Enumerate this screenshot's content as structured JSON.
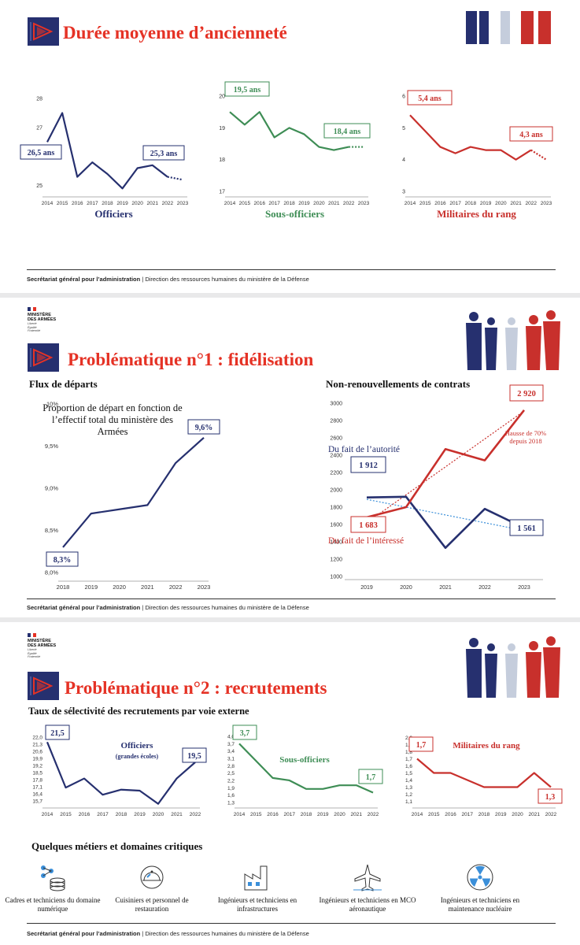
{
  "colors": {
    "navy": "#26306f",
    "green": "#3e8d55",
    "red": "#c8302c",
    "title_red": "#e53225",
    "light_blue": "#3b8fd9",
    "blue_grey": "#c5cddc"
  },
  "footer": {
    "bold": "Secrétariat général pour l’administration",
    "rest": " | Direction des ressources humaines du ministère de la Défense"
  },
  "ministry": {
    "line1": "MINISTÈRE",
    "line2": "DES ARMÉES",
    "motto1": "Liberté",
    "motto2": "Égalité",
    "motto3": "Fraternité"
  },
  "slide1": {
    "title": "Durée moyenne d’ancienneté",
    "charts": [
      {
        "type": "line",
        "caption": "Officiers",
        "color": "#26306f",
        "x": [
          "2014",
          "2015",
          "2016",
          "2017",
          "2018",
          "2019",
          "2020",
          "2021",
          "2022",
          "2023"
        ],
        "y": [
          26.5,
          27.5,
          25.3,
          25.8,
          25.4,
          24.9,
          25.6,
          25.7,
          25.3,
          25.2
        ],
        "dotted_from_index": 8,
        "ylim": [
          24.8,
          28.3
        ],
        "yticks": [
          "25",
          "26",
          "27",
          "28"
        ],
        "labels": [
          {
            "text": "26,5 ans",
            "index": 0
          },
          {
            "text": "25,3 ans",
            "index": 8
          }
        ]
      },
      {
        "type": "line",
        "caption": "Sous-officiers",
        "color": "#3e8d55",
        "x": [
          "2014",
          "2015",
          "2016",
          "2017",
          "2018",
          "2019",
          "2020",
          "2021",
          "2022",
          "2023"
        ],
        "y": [
          19.5,
          19.1,
          19.5,
          18.7,
          19.0,
          18.8,
          18.4,
          18.3,
          18.4,
          18.4
        ],
        "dotted_from_index": 8,
        "ylim": [
          17.0,
          20.2
        ],
        "yticks": [
          "17",
          "18",
          "19",
          "20"
        ],
        "labels": [
          {
            "text": "19,5 ans",
            "index": 0
          },
          {
            "text": "18,4 ans",
            "index": 8
          }
        ]
      },
      {
        "type": "line",
        "caption": "Militaires du rang",
        "color": "#c8302c",
        "x": [
          "2014",
          "2015",
          "2016",
          "2017",
          "2018",
          "2019",
          "2020",
          "2021",
          "2022",
          "2023"
        ],
        "y": [
          5.4,
          4.9,
          4.4,
          4.2,
          4.4,
          4.3,
          4.3,
          4.0,
          4.3,
          4.0
        ],
        "dotted_from_index": 8,
        "ylim": [
          3.0,
          6.2
        ],
        "yticks": [
          "3",
          "4",
          "5",
          "6"
        ],
        "labels": [
          {
            "text": "5,4 ans",
            "index": 0
          },
          {
            "text": "4,3 ans",
            "index": 8
          }
        ]
      }
    ]
  },
  "slide2": {
    "title": "Problématique n°1 : fidélisation",
    "left_heading": "Flux de départs",
    "right_heading": "Non-renouvellements de contrats",
    "note": "Proportion de départ en fonction de l’effectif total du ministère des Armées",
    "chart_left": {
      "type": "line",
      "color": "#26306f",
      "x": [
        "2018",
        "2019",
        "2020",
        "2021",
        "2022",
        "2023"
      ],
      "y": [
        8.3,
        8.7,
        8.75,
        8.8,
        9.3,
        9.6
      ],
      "ylim": [
        8.0,
        10.0
      ],
      "yticks": [
        "8,0%",
        "8,5%",
        "9,0%",
        "9,5%",
        "10%"
      ],
      "labels": [
        {
          "text": "8,3%",
          "index": 0
        },
        {
          "text": "9,6%",
          "index": 5
        }
      ]
    },
    "chart_right": {
      "type": "line",
      "x": [
        "2019",
        "2020",
        "2021",
        "2022",
        "2023"
      ],
      "ylim": [
        1000,
        3000
      ],
      "yticks": [
        "1000",
        "1200",
        "1400",
        "1600",
        "1800",
        "2000",
        "2200",
        "2400",
        "2600",
        "2800",
        "3000"
      ],
      "series": [
        {
          "name": "Du fait de l’autorité",
          "color": "#26306f",
          "values": [
            1912,
            1920,
            1330,
            1780,
            1561
          ]
        },
        {
          "name": "Du fait de l’intéressé",
          "color": "#c8302c",
          "values": [
            1683,
            1800,
            2470,
            2340,
            2920
          ]
        }
      ],
      "labels": [
        {
          "text": "1 912"
        },
        {
          "text": "1 561"
        },
        {
          "text": "1 683"
        },
        {
          "text": "2 920"
        }
      ],
      "annotation": "Hausse de 70% depuis 2018"
    }
  },
  "slide3": {
    "title": "Problématique n°2 : recrutements",
    "heading": "Taux de sélectivité des recrutements par voie externe",
    "charts": [
      {
        "type": "line",
        "color": "#26306f",
        "caption": "Officiers",
        "subcaption": "(grandes écoles)",
        "x": [
          "2014",
          "2015",
          "2016",
          "2017",
          "2018",
          "2019",
          "2020",
          "2021",
          "2022"
        ],
        "y": [
          21.5,
          17.0,
          17.9,
          16.3,
          16.8,
          16.7,
          15.4,
          17.9,
          19.5
        ],
        "ylim": [
          15.3,
          22.3
        ],
        "yticks": [
          "15,7",
          "16,4",
          "17,1",
          "17,8",
          "18,5",
          "19,2",
          "19,9",
          "20,6",
          "21,3",
          "22,0"
        ],
        "labels": [
          {
            "text": "21,5",
            "index": 0
          },
          {
            "text": "19,5",
            "index": 8
          }
        ]
      },
      {
        "type": "line",
        "color": "#3e8d55",
        "caption": "Sous-officiers",
        "x": [
          "2014",
          "2015",
          "2016",
          "2017",
          "2018",
          "2019",
          "2020",
          "2021",
          "2022"
        ],
        "y": [
          3.7,
          3.0,
          2.3,
          2.2,
          1.85,
          1.85,
          2.0,
          2.0,
          1.7
        ],
        "ylim": [
          1.2,
          4.1
        ],
        "yticks": [
          "1,3",
          "1,6",
          "1,9",
          "2,2",
          "2,5",
          "2,8",
          "3,1",
          "3,4",
          "3,7",
          "4,0"
        ],
        "labels": [
          {
            "text": "3,7",
            "index": 0
          },
          {
            "text": "1,7",
            "index": 8
          }
        ]
      },
      {
        "type": "line",
        "color": "#c8302c",
        "caption": "Militaires du rang",
        "x": [
          "2014",
          "2015",
          "2016",
          "2017",
          "2018",
          "2019",
          "2020",
          "2021",
          "2022"
        ],
        "y": [
          1.7,
          1.5,
          1.5,
          1.4,
          1.3,
          1.3,
          1.3,
          1.5,
          1.3
        ],
        "ylim": [
          1.05,
          2.05
        ],
        "yticks": [
          "1,1",
          "1,2",
          "1,3",
          "1,4",
          "1,5",
          "1,6",
          "1,7",
          "1,8",
          "1,9",
          "2,0"
        ],
        "labels": [
          {
            "text": "1,7",
            "index": 0
          },
          {
            "text": "1,3",
            "index": 8
          }
        ]
      }
    ],
    "metiers_heading": "Quelques métiers et domaines critiques",
    "metiers": [
      {
        "label": "Cadres et techniciens du domaine numérique",
        "icon": "database-network-icon"
      },
      {
        "label": "Cuisiniers et personnel de restauration",
        "icon": "cloche-icon"
      },
      {
        "label": "Ingénieurs et techniciens en infrastructures",
        "icon": "factory-icon"
      },
      {
        "label": "Ingénieurs et techniciens en MCO aéronautique",
        "icon": "airplane-icon"
      },
      {
        "label": "Ingénieurs et techniciens en maintenance nucléaire",
        "icon": "radiation-icon"
      }
    ]
  }
}
